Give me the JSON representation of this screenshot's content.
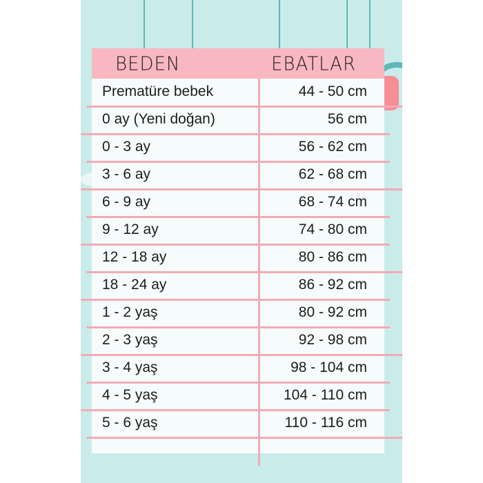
{
  "header": {
    "size_label": "BEDEN",
    "dimensions_label": "EBATLAR"
  },
  "rows": [
    {
      "size": "Prematüre bebek",
      "range": "44 - 50 cm"
    },
    {
      "size": "0 ay (Yeni doğan)",
      "range": "56 cm"
    },
    {
      "size": "0 - 3 ay",
      "range": "56 - 62 cm"
    },
    {
      "size": "3 - 6 ay",
      "range": "62 - 68 cm"
    },
    {
      "size": "6 - 9 ay",
      "range": "68 - 74 cm"
    },
    {
      "size": "9 - 12 ay",
      "range": "74 - 80 cm"
    },
    {
      "size": "12 - 18 ay",
      "range": "80 - 86 cm"
    },
    {
      "size": "18 - 24 ay",
      "range": "86 - 92 cm"
    },
    {
      "size": "1 - 2 yaş",
      "range": "80 - 92 cm"
    },
    {
      "size": "2 - 3 yaş",
      "range": "92 - 98 cm"
    },
    {
      "size": "3 - 4 yaş",
      "range": "98 - 104 cm"
    },
    {
      "size": "4 - 5 yaş",
      "range": "104 - 110 cm"
    },
    {
      "size": "5 - 6 yaş",
      "range": "110 - 116 cm"
    }
  ],
  "colors": {
    "background": "#c9ecea",
    "header": "#f7b8c1",
    "lines": "#f3aab5"
  }
}
